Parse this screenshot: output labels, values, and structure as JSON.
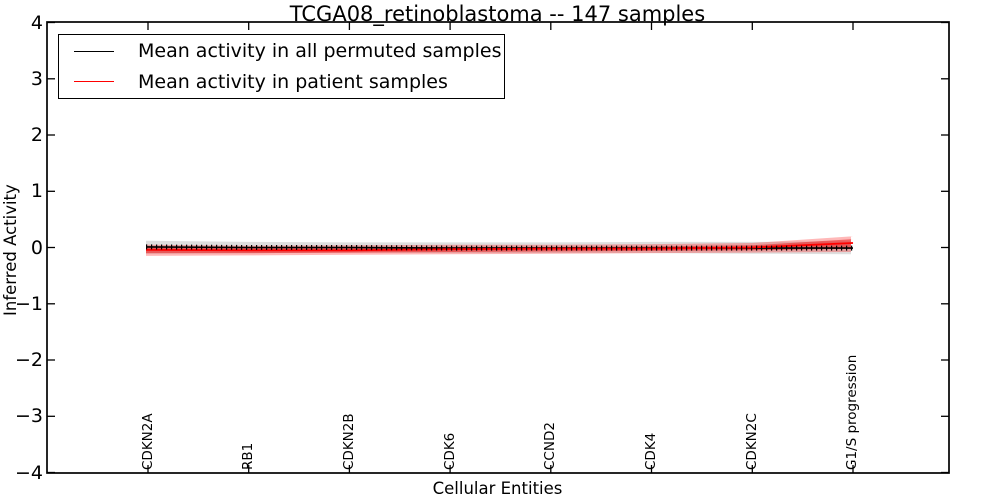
{
  "title": "TCGA08_retinoblastoma -- 147 samples",
  "legend": {
    "items": [
      {
        "label": "Mean activity in all permuted samples",
        "color": "#000000"
      },
      {
        "label": "Mean activity in patient samples",
        "color": "#ff0000"
      }
    ],
    "position": "upper left"
  },
  "chart_data": {
    "type": "line",
    "title": "TCGA08_retinoblastoma -- 147 samples",
    "xlabel": "Cellular Entities",
    "ylabel": "Inferred Activity",
    "ylim": [
      -4,
      4
    ],
    "yticks": [
      4,
      3,
      2,
      1,
      0,
      -1,
      -2,
      -3,
      -4
    ],
    "grid": false,
    "categories": [
      "CDKN2A",
      "RB1",
      "CDKN2B",
      "CDK6",
      "CCND2",
      "CDK4",
      "CDKN2C",
      "G1/S progression"
    ],
    "series": [
      {
        "name": "Mean activity in all permuted samples",
        "color": "#000000",
        "marker": "+",
        "values": [
          0.01,
          0.0,
          0.0,
          -0.01,
          -0.01,
          -0.01,
          -0.01,
          -0.01
        ],
        "band_upper": [
          0.12,
          0.1,
          0.09,
          0.09,
          0.09,
          0.1,
          0.1,
          0.11
        ],
        "band_lower": [
          -0.11,
          -0.1,
          -0.09,
          -0.1,
          -0.1,
          -0.1,
          -0.11,
          -0.12
        ],
        "band_color": "rgba(0,0,0,0.13)"
      },
      {
        "name": "Mean activity in patient samples",
        "color": "#ff0000",
        "values": [
          -0.04,
          -0.05,
          -0.05,
          -0.03,
          -0.02,
          -0.02,
          0.0,
          0.08
        ],
        "band_outer_upper": [
          0.05,
          0.03,
          0.04,
          0.05,
          0.05,
          0.06,
          0.08,
          0.2
        ],
        "band_outer_lower": [
          -0.15,
          -0.14,
          -0.13,
          -0.12,
          -0.11,
          -0.1,
          -0.09,
          -0.08
        ],
        "band_outer_color": "rgba(255,0,0,0.28)",
        "band_inner_upper": [
          0.0,
          -0.01,
          0.0,
          0.01,
          0.01,
          0.02,
          0.04,
          0.15
        ],
        "band_inner_lower": [
          -0.1,
          -0.1,
          -0.09,
          -0.08,
          -0.07,
          -0.06,
          -0.05,
          -0.02
        ],
        "band_inner_color": "rgba(230,30,30,0.55)"
      }
    ]
  }
}
